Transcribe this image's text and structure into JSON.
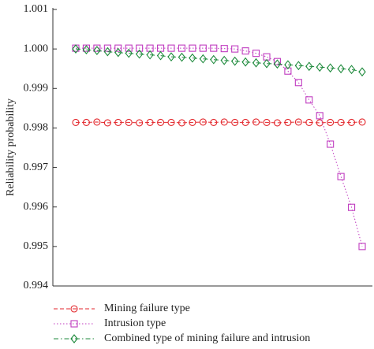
{
  "chart_data": {
    "type": "line",
    "ylabel": "Reliability probability",
    "categories": [
      null,
      null,
      null,
      null,
      null,
      null,
      null,
      null,
      null,
      null,
      null,
      null,
      null,
      null,
      null,
      null,
      null,
      null,
      null,
      null,
      null,
      null,
      null,
      null,
      null,
      null,
      null,
      null
    ],
    "ylim": [
      0.994,
      1.001
    ],
    "yticks": [
      0.994,
      0.995,
      0.996,
      0.997,
      0.998,
      0.999,
      {
        "value": 1,
        "label": "1.000"
      },
      1.001
    ],
    "series": [
      {
        "name": "Mining failure type",
        "color": "#e3262b",
        "marker": "circle",
        "linestyle": "dashed",
        "values": [
          0.99814,
          0.99814,
          0.99815,
          0.99813,
          0.99814,
          0.99814,
          0.99813,
          0.99814,
          0.99814,
          0.99814,
          0.99813,
          0.99814,
          0.99815,
          0.99814,
          0.99815,
          0.99814,
          0.99814,
          0.99815,
          0.99814,
          0.99813,
          0.99814,
          0.99815,
          0.99814,
          0.99813,
          0.99814,
          0.99814,
          0.99814,
          0.99815
        ]
      },
      {
        "name": "Intrusion type",
        "color": "#c03cc0",
        "marker": "square",
        "linestyle": "dotted",
        "values": [
          1.00002,
          1.00002,
          1.00002,
          1.00002,
          1.00002,
          1.00002,
          1.00002,
          1.00002,
          1.00002,
          1.00002,
          1.00002,
          1.00002,
          1.00002,
          1.00002,
          1.00001,
          1.0,
          0.99995,
          0.99989,
          0.9998,
          0.99968,
          0.99944,
          0.99915,
          0.99871,
          0.99831,
          0.99759,
          0.99677,
          0.99599,
          0.995
        ]
      },
      {
        "name": "Combined type of mining failure and intrusion",
        "color": "#1e8a3c",
        "marker": "diamond",
        "linestyle": "dashdot",
        "values": [
          1.0,
          0.99998,
          0.99996,
          0.99993,
          0.99991,
          0.99989,
          0.99987,
          0.99985,
          0.99983,
          0.9998,
          0.99979,
          0.99977,
          0.99975,
          0.99973,
          0.99971,
          0.99969,
          0.99967,
          0.99965,
          0.99963,
          0.99962,
          0.9996,
          0.99958,
          0.99956,
          0.99954,
          0.99952,
          0.9995,
          0.99948,
          0.99942
        ]
      }
    ]
  }
}
